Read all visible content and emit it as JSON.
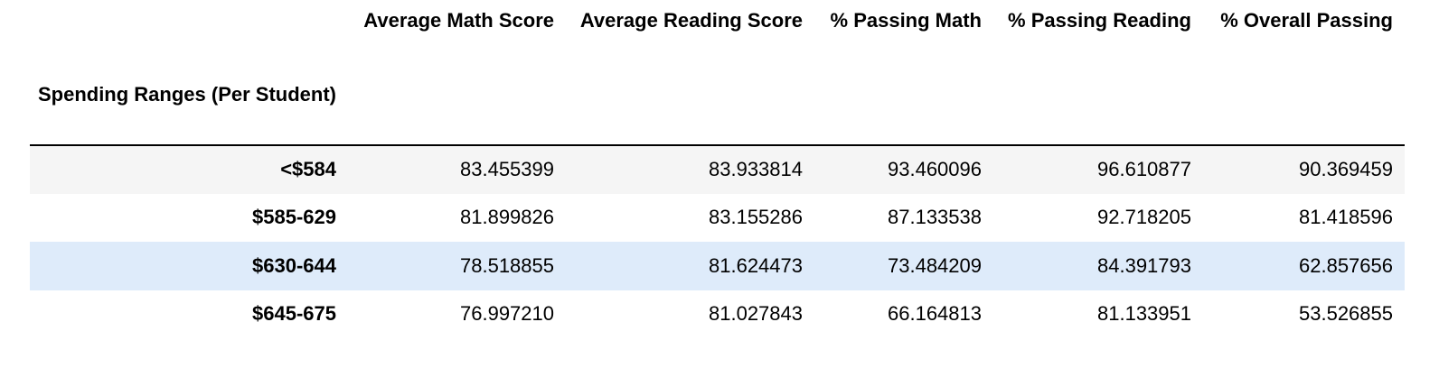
{
  "table": {
    "index_name": "Spending Ranges (Per Student)",
    "columns": [
      "Average Math Score",
      "Average Reading Score",
      "% Passing Math",
      "% Passing Reading",
      "% Overall Passing"
    ],
    "rows": [
      {
        "label": "<$584",
        "values": [
          "83.455399",
          "83.933814",
          "93.460096",
          "96.610877",
          "90.369459"
        ]
      },
      {
        "label": "$585-629",
        "values": [
          "81.899826",
          "83.155286",
          "87.133538",
          "92.718205",
          "81.418596"
        ]
      },
      {
        "label": "$630-644",
        "values": [
          "78.518855",
          "81.624473",
          "73.484209",
          "84.391793",
          "62.857656"
        ]
      },
      {
        "label": "$645-675",
        "values": [
          "76.997210",
          "81.027843",
          "66.164813",
          "81.133951",
          "53.526855"
        ]
      }
    ],
    "colors": {
      "stripe": "#f5f5f5",
      "hover_highlight": "#deebfa",
      "header_rule": "#000000"
    }
  }
}
